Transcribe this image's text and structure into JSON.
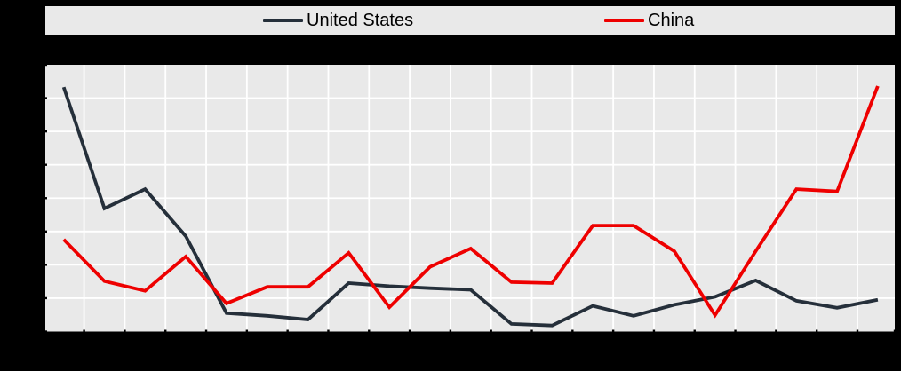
{
  "window": {
    "background": "#000000",
    "note": "axis tick labels not visible (black on black background)"
  },
  "chart_data": {
    "type": "line",
    "title": "",
    "xlabel": "",
    "ylabel": "",
    "panel_background": "#e9e9e9",
    "gridline_color": "#ffffff",
    "tick_color": "#000000",
    "x": [
      1,
      2,
      3,
      4,
      5,
      6,
      7,
      8,
      9,
      10,
      11,
      12,
      13,
      14,
      15,
      16,
      17,
      18,
      19,
      20,
      21
    ],
    "x_tick_labels_visible": false,
    "y_tick_labels_visible": false,
    "y_units": "gridline intervals above bottom axis (labels not visible)",
    "ylim": [
      0,
      8
    ],
    "y_gridline_count": 9,
    "legend_position": "top",
    "series": [
      {
        "name": "United States",
        "color": "#252f3a",
        "values": [
          7.33,
          3.69,
          4.27,
          2.86,
          0.55,
          0.47,
          0.36,
          1.45,
          1.36,
          1.3,
          1.25,
          0.23,
          0.18,
          0.77,
          0.47,
          0.8,
          1.04,
          1.53,
          0.92,
          0.71,
          0.95
        ]
      },
      {
        "name": "China",
        "color": "#ee0000",
        "values": [
          2.76,
          1.51,
          1.22,
          2.25,
          0.84,
          1.34,
          1.34,
          2.36,
          0.73,
          1.94,
          2.49,
          1.48,
          1.45,
          3.18,
          3.18,
          2.41,
          0.49,
          2.41,
          4.27,
          4.2,
          7.36
        ]
      }
    ]
  }
}
